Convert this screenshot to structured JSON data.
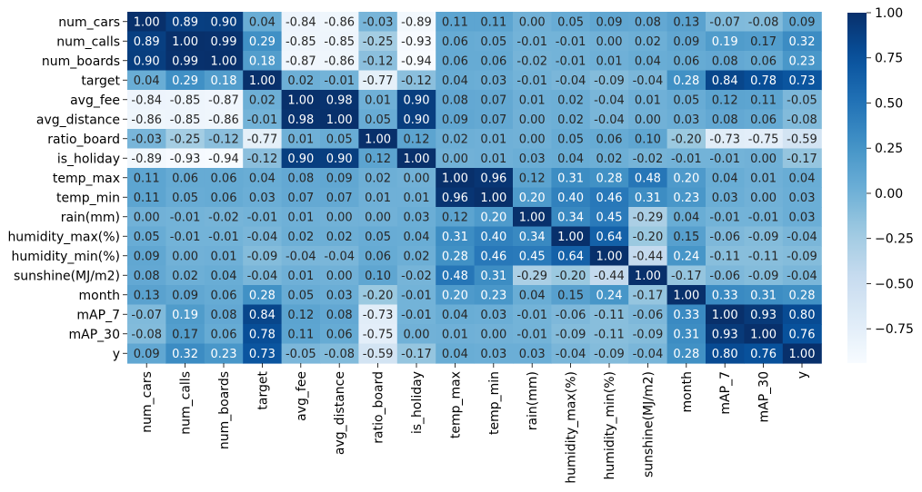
{
  "chart_data": {
    "type": "heatmap",
    "labels": [
      "num_cars",
      "num_calls",
      "num_boards",
      "target",
      "avg_fee",
      "avg_distance",
      "ratio_board",
      "is_holiday",
      "temp_max",
      "temp_min",
      "rain(mm)",
      "humidity_max(%)",
      "humidity_min(%)",
      "sunshine(MJ/m2)",
      "month",
      "mAP_7",
      "mAP_30",
      "y"
    ],
    "values": [
      [
        1.0,
        0.89,
        0.9,
        0.04,
        -0.84,
        -0.86,
        -0.03,
        -0.89,
        0.11,
        0.11,
        0.0,
        0.05,
        0.09,
        0.08,
        0.13,
        -0.07,
        -0.08,
        0.09
      ],
      [
        0.89,
        1.0,
        0.99,
        0.29,
        -0.85,
        -0.85,
        -0.25,
        -0.93,
        0.06,
        0.05,
        -0.01,
        -0.01,
        -0.0,
        0.02,
        0.09,
        0.19,
        0.17,
        0.32
      ],
      [
        0.9,
        0.99,
        1.0,
        0.18,
        -0.87,
        -0.86,
        -0.12,
        -0.94,
        0.06,
        0.06,
        -0.02,
        -0.01,
        0.01,
        0.04,
        0.06,
        0.08,
        0.06,
        0.23
      ],
      [
        0.04,
        0.29,
        0.18,
        1.0,
        0.02,
        -0.01,
        -0.77,
        -0.12,
        0.04,
        0.03,
        -0.01,
        -0.04,
        -0.09,
        -0.04,
        0.28,
        0.84,
        0.78,
        0.73
      ],
      [
        -0.84,
        -0.85,
        -0.87,
        0.02,
        1.0,
        0.98,
        0.01,
        0.9,
        0.08,
        0.07,
        0.01,
        0.02,
        -0.04,
        0.01,
        0.05,
        0.12,
        0.11,
        -0.05
      ],
      [
        -0.86,
        -0.85,
        -0.86,
        -0.01,
        0.98,
        1.0,
        0.05,
        0.9,
        0.09,
        0.07,
        0.0,
        0.02,
        -0.04,
        -0.0,
        0.03,
        0.08,
        0.06,
        -0.08
      ],
      [
        -0.03,
        -0.25,
        -0.12,
        -0.77,
        0.01,
        0.05,
        1.0,
        0.12,
        0.02,
        0.01,
        -0.0,
        0.05,
        0.06,
        0.1,
        -0.2,
        -0.73,
        -0.75,
        -0.59
      ],
      [
        -0.89,
        -0.93,
        -0.94,
        -0.12,
        0.9,
        0.9,
        0.12,
        1.0,
        0.0,
        0.01,
        0.03,
        0.04,
        0.02,
        -0.02,
        -0.01,
        -0.01,
        0.0,
        -0.17
      ],
      [
        0.11,
        0.06,
        0.06,
        0.04,
        0.08,
        0.09,
        0.02,
        0.0,
        1.0,
        0.96,
        0.12,
        0.31,
        0.28,
        0.48,
        0.2,
        0.04,
        0.01,
        0.04
      ],
      [
        0.11,
        0.05,
        0.06,
        0.03,
        0.07,
        0.07,
        0.01,
        0.01,
        0.96,
        1.0,
        0.2,
        0.4,
        0.46,
        0.31,
        0.23,
        0.03,
        0.0,
        0.03
      ],
      [
        0.0,
        -0.01,
        -0.02,
        -0.01,
        0.01,
        0.0,
        -0.0,
        0.03,
        0.12,
        0.2,
        1.0,
        0.34,
        0.45,
        -0.29,
        0.04,
        -0.01,
        -0.01,
        0.03
      ],
      [
        0.05,
        -0.01,
        -0.01,
        -0.04,
        0.02,
        0.02,
        0.05,
        0.04,
        0.31,
        0.4,
        0.34,
        1.0,
        0.64,
        -0.2,
        0.15,
        -0.06,
        -0.09,
        -0.04
      ],
      [
        0.09,
        -0.0,
        0.01,
        -0.09,
        -0.04,
        -0.04,
        0.06,
        0.02,
        0.28,
        0.46,
        0.45,
        0.64,
        1.0,
        -0.44,
        0.24,
        -0.11,
        -0.11,
        -0.09
      ],
      [
        0.08,
        0.02,
        0.04,
        -0.04,
        0.01,
        -0.0,
        0.1,
        -0.02,
        0.48,
        0.31,
        -0.29,
        -0.2,
        -0.44,
        1.0,
        -0.17,
        -0.06,
        -0.09,
        -0.04
      ],
      [
        0.13,
        0.09,
        0.06,
        0.28,
        0.05,
        0.03,
        -0.2,
        -0.01,
        0.2,
        0.23,
        0.04,
        0.15,
        0.24,
        -0.17,
        1.0,
        0.33,
        0.31,
        0.28
      ],
      [
        -0.07,
        0.19,
        0.08,
        0.84,
        0.12,
        0.08,
        -0.73,
        -0.01,
        0.04,
        0.03,
        -0.01,
        -0.06,
        -0.11,
        -0.06,
        0.33,
        1.0,
        0.93,
        0.8
      ],
      [
        -0.08,
        0.17,
        0.06,
        0.78,
        0.11,
        0.06,
        -0.75,
        0.0,
        0.01,
        0.0,
        -0.01,
        -0.09,
        -0.11,
        -0.09,
        0.31,
        0.93,
        1.0,
        0.76
      ],
      [
        0.09,
        0.32,
        0.23,
        0.73,
        -0.05,
        -0.08,
        -0.59,
        -0.17,
        0.04,
        0.03,
        0.03,
        -0.04,
        -0.09,
        -0.04,
        0.28,
        0.8,
        0.76,
        1.0
      ]
    ],
    "value_format": "two decimals",
    "colormap": "Blues",
    "color_scale_range": [
      -0.94,
      1.0
    ],
    "colorbar": {
      "ticks": [
        1.0,
        0.75,
        0.5,
        0.25,
        0.0,
        -0.25,
        -0.5,
        -0.75
      ],
      "tick_labels": [
        "1.00",
        "0.75",
        "0.50",
        "0.25",
        "0.00",
        "−0.25",
        "−0.50",
        "−0.75"
      ],
      "placement": "right"
    },
    "title": "",
    "xlabel": "",
    "ylabel": "",
    "grid": false
  }
}
